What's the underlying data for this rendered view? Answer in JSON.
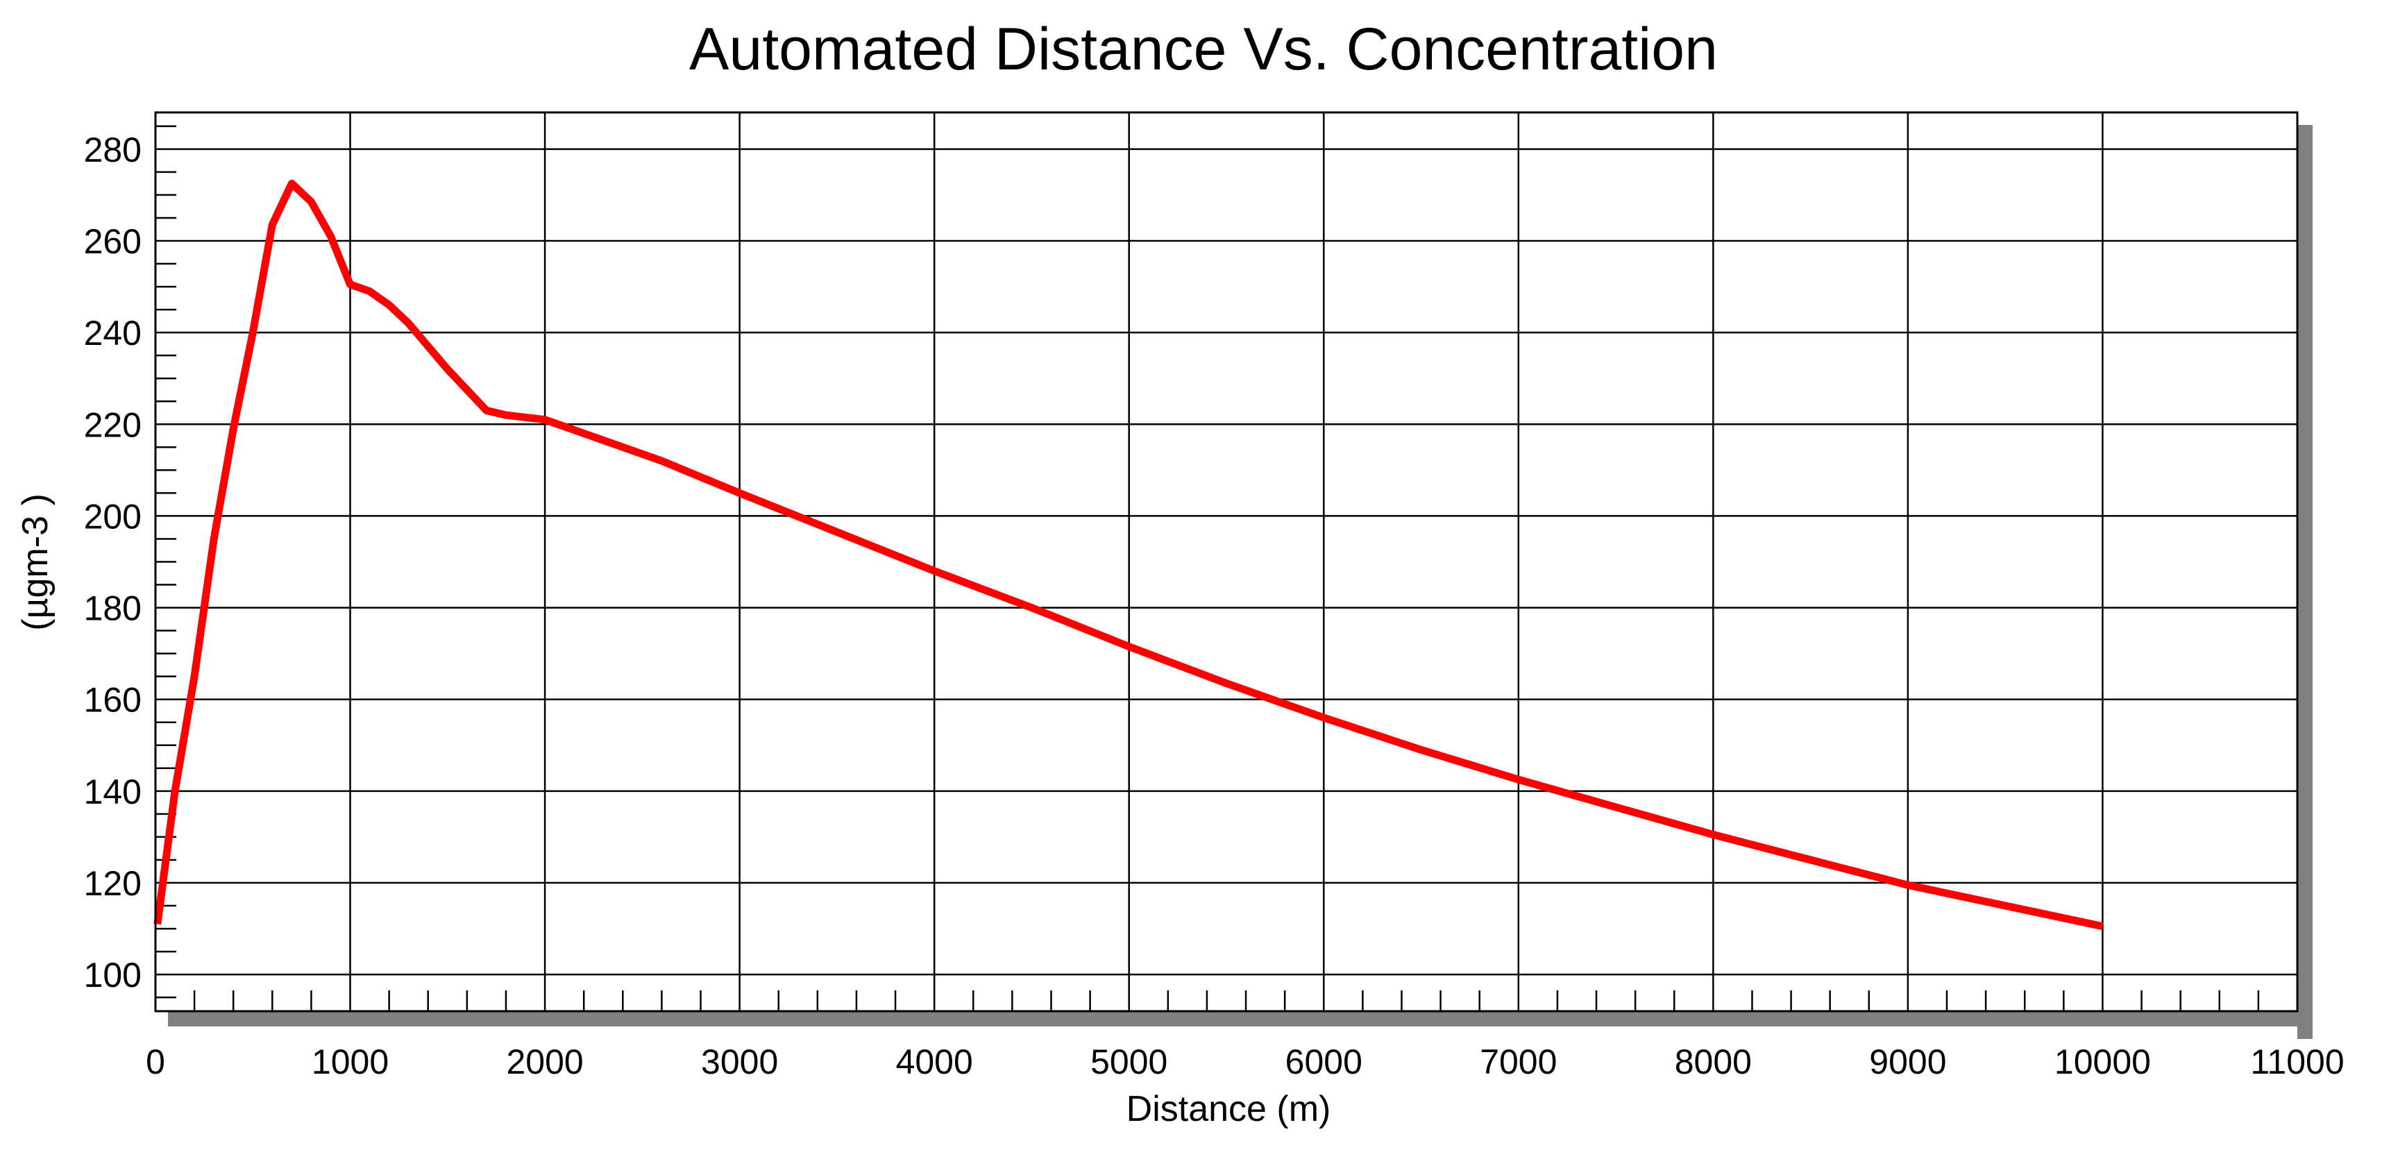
{
  "chart_data": {
    "type": "line",
    "title": "Automated Distance Vs. Concentration",
    "xlabel": "Distance (m)",
    "ylabel": "(µgm-3 )",
    "xlim": [
      0,
      11000
    ],
    "ylim": [
      92,
      288
    ],
    "x_ticks": [
      0,
      1000,
      2000,
      3000,
      4000,
      5000,
      6000,
      7000,
      8000,
      9000,
      10000,
      11000
    ],
    "y_ticks": [
      100,
      120,
      140,
      160,
      180,
      200,
      220,
      240,
      260,
      280
    ],
    "x_minor_step": 200,
    "y_minor_step": 5,
    "grid": true,
    "line_color": "#ff0000",
    "series": [
      {
        "x": [
          10,
          100,
          200,
          300,
          400,
          500,
          600,
          700,
          800,
          900,
          1000,
          1100,
          1200,
          1300,
          1400,
          1500,
          1600,
          1700,
          1800,
          1900,
          2000,
          2100,
          2200,
          2400,
          2600,
          2800,
          3000,
          3500,
          4000,
          4500,
          5000,
          5500,
          6000,
          6500,
          7000,
          7500,
          8000,
          8500,
          9000,
          9500,
          10000
        ],
        "values": [
          111,
          140,
          165,
          195,
          219,
          240,
          263.5,
          272.5,
          268.5,
          261,
          250.5,
          249,
          246,
          242,
          237,
          232,
          227.5,
          223,
          222,
          221.5,
          221,
          219.5,
          218,
          215,
          212,
          208.5,
          205,
          196.5,
          188,
          180,
          171.5,
          163.5,
          156,
          149,
          142.5,
          136.5,
          130.5,
          125,
          119.5,
          115,
          110.5
        ]
      }
    ]
  }
}
